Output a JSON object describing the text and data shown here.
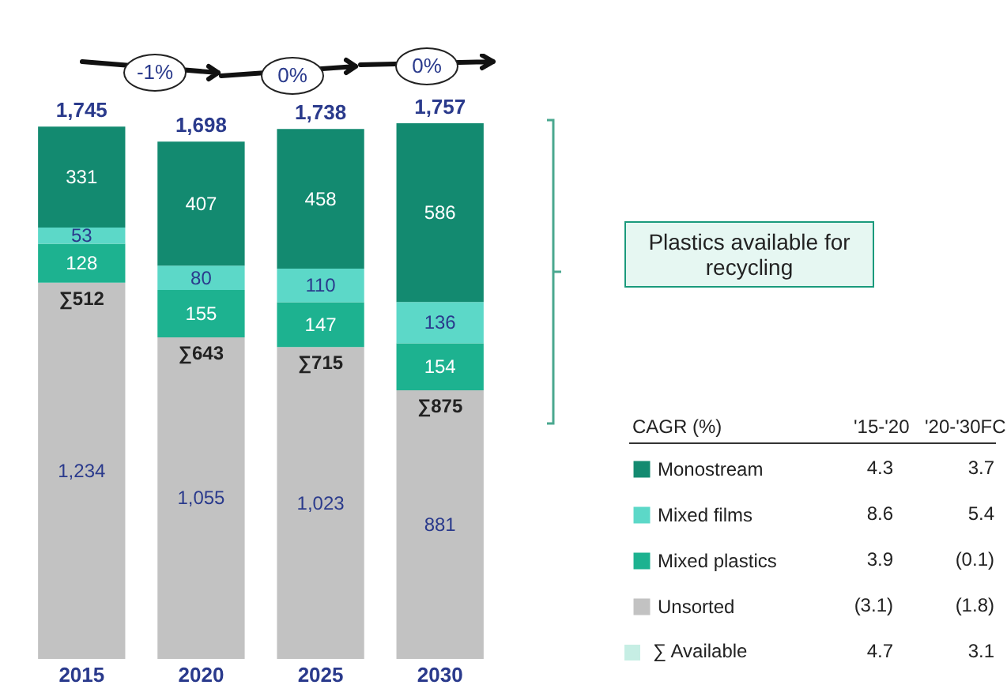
{
  "chart_data": {
    "type": "bar",
    "stacked": true,
    "legend": "bottom right",
    "categories": [
      "2015",
      "2020",
      "2025",
      "2030"
    ],
    "series": [
      {
        "name": "Unsorted",
        "color": "#c2c2c2",
        "values": [
          1234,
          1055,
          1023,
          881
        ],
        "value_labels": [
          "1,234",
          "1,055",
          "1,023",
          "881"
        ]
      },
      {
        "name": "Mixed plastics",
        "color": "#1db290",
        "values": [
          128,
          155,
          147,
          154
        ],
        "value_labels": [
          "128",
          "155",
          "147",
          "154"
        ]
      },
      {
        "name": "Mixed films",
        "color": "#5cd8c8",
        "values": [
          53,
          80,
          110,
          136
        ],
        "value_labels": [
          "53",
          "80",
          "110",
          "136"
        ]
      },
      {
        "name": "Monostream",
        "color": "#138a70",
        "values": [
          331,
          407,
          458,
          586
        ],
        "value_labels": [
          "331",
          "407",
          "458",
          "586"
        ]
      }
    ],
    "totals": [
      "1,745",
      "1,698",
      "1,738",
      "1,757"
    ],
    "annotations": [
      "-1%",
      "0%",
      "0%",
      "Plastics available for recycling",
      "CAGR (%)",
      "'15-'20",
      "'20-'30FC",
      "4.3",
      "3.7",
      "8.6",
      "5.4",
      "3.9",
      "(0.1)",
      "∑ Available",
      "4.7",
      "3.1",
      "(3.1)",
      "(1.8)",
      {
        "text": "∑512",
        "x": "2015",
        "y": 1234
      },
      {
        "text": "∑643",
        "x": "2020",
        "y": 1055
      },
      {
        "text": "∑715",
        "x": "2025",
        "y": 1023
      },
      {
        "text": "∑875",
        "x": "2030",
        "y": 881
      }
    ]
  }
}
